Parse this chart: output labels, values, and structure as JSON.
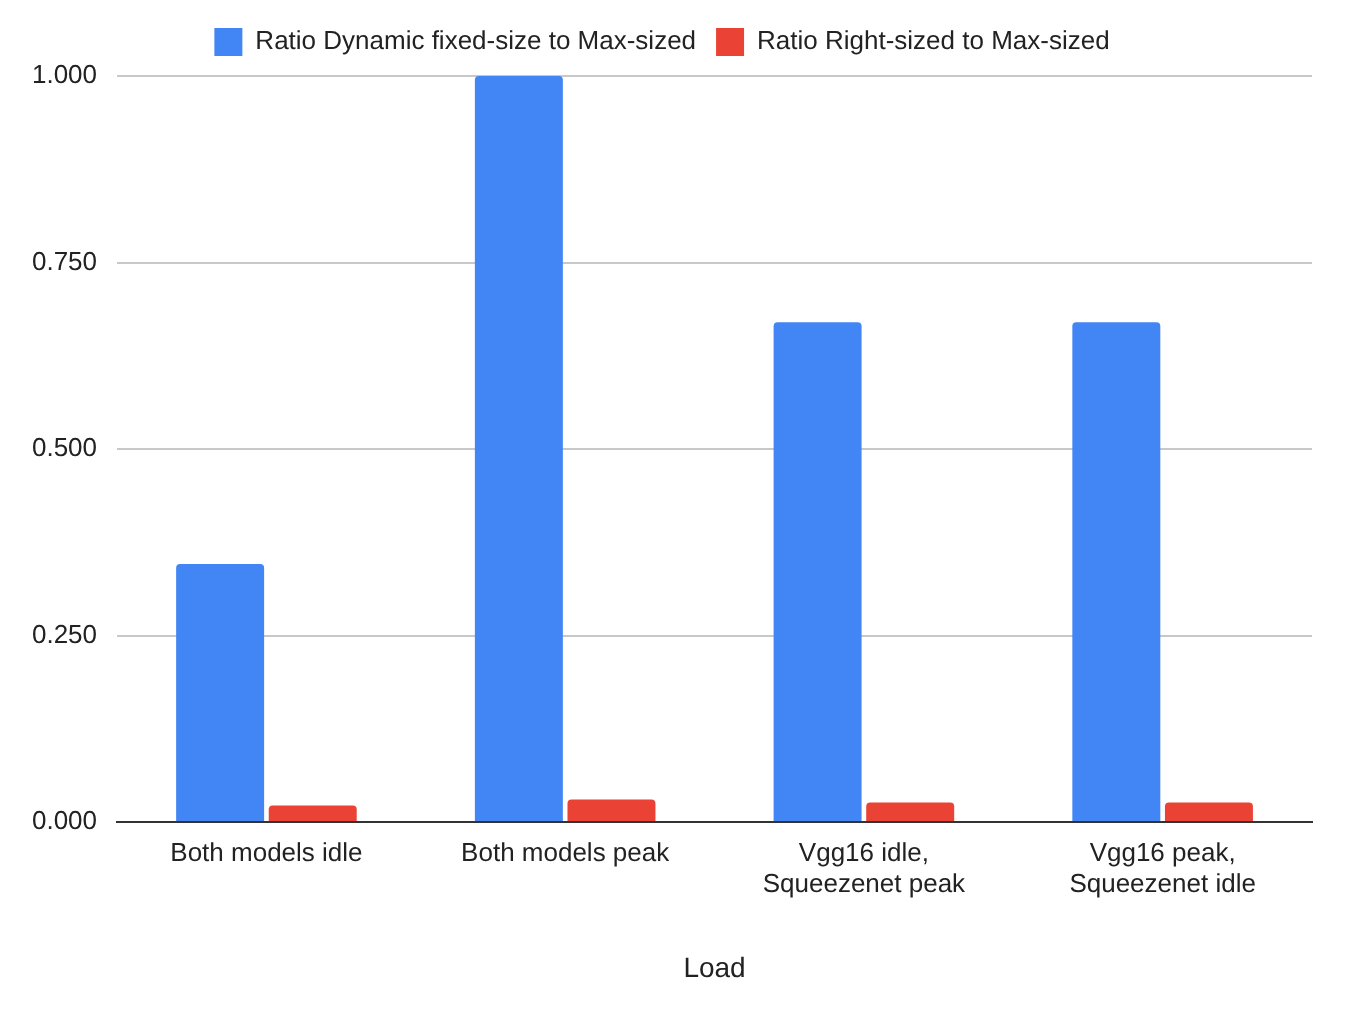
{
  "chart_data": {
    "type": "bar",
    "xlabel": "Load",
    "categories": [
      "Both models idle",
      "Both models peak",
      "Vgg16 idle, Squeezenet peak",
      "Vgg16 peak, Squeezenet idle"
    ],
    "series": [
      {
        "name": "Ratio Dynamic fixed-size to Max-sized",
        "color": "#4285f4",
        "values": [
          0.346,
          1.0,
          0.67,
          0.67
        ]
      },
      {
        "name": "Ratio Right-sized to Max-sized",
        "color": "#ea4335",
        "values": [
          0.022,
          0.03,
          0.026,
          0.026
        ]
      }
    ],
    "ylim": [
      0,
      1
    ],
    "yticks": [
      {
        "value": 0,
        "label": "0.000"
      },
      {
        "value": 0.25,
        "label": "0.250"
      },
      {
        "value": 0.5,
        "label": "0.500"
      },
      {
        "value": 0.75,
        "label": "0.750"
      },
      {
        "value": 1,
        "label": "1.000"
      }
    ],
    "grid": "y",
    "legend": "top"
  }
}
